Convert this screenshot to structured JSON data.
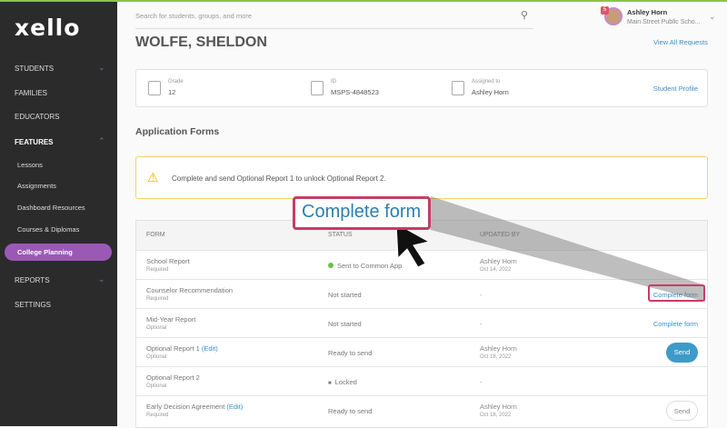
{
  "sidebar": {
    "logo": "xello",
    "items": [
      {
        "label": "STUDENTS"
      },
      {
        "label": "FAMILIES"
      },
      {
        "label": "EDUCATORS"
      },
      {
        "label": "FEATURES"
      },
      {
        "label": "REPORTS"
      },
      {
        "label": "SETTINGS"
      }
    ],
    "features_sub": [
      "Lessons",
      "Assignments",
      "Dashboard Resources",
      "Courses & Diplomas",
      "College Planning"
    ]
  },
  "header": {
    "search_placeholder": "Search for students, groups, and more",
    "user_name": "Ashley Horn",
    "user_school": "Main Street Public Scho...",
    "notification_count": "5"
  },
  "student": {
    "name": "WOLFE, SHELDON",
    "view_all": "View All Requests",
    "grade_label": "Grade",
    "grade": "12",
    "id_label": "ID",
    "id": "MSPS-4848523",
    "assigned_label": "Assigned to",
    "assigned": "Ashley Horn",
    "profile_link": "Student Profile"
  },
  "section_title": "Application Forms",
  "alert": "Complete and send Optional Report 1 to unlock Optional Report 2.",
  "table": {
    "headers": [
      "FORM",
      "STATUS",
      "UPDATED BY"
    ],
    "rows": [
      {
        "name": "School Report",
        "edit": "",
        "req": "Required",
        "status": "Sent to Common App",
        "by": "Ashley Horn",
        "date": "Oct 14, 2022",
        "action": ""
      },
      {
        "name": "Counselor Recommendation",
        "edit": "",
        "req": "Required",
        "status": "Not started",
        "by": "-",
        "date": "",
        "action": "Complete form"
      },
      {
        "name": "Mid-Year Report",
        "edit": "",
        "req": "Optional",
        "status": "Not started",
        "by": "-",
        "date": "",
        "action": "Complete form"
      },
      {
        "name": "Optional Report 1",
        "edit": "(Edit)",
        "req": "Optional",
        "status": "Ready to send",
        "by": "Ashley Horn",
        "date": "Oct 18, 2022",
        "action": "Send"
      },
      {
        "name": "Optional Report 2",
        "edit": "",
        "req": "Optional",
        "status": "Locked",
        "by": "-",
        "date": "",
        "action": ""
      },
      {
        "name": "Early Decision Agreement",
        "edit": "(Edit)",
        "req": "Required",
        "status": "Ready to send",
        "by": "Ashley Horn",
        "date": "Oct 18, 2022",
        "action": "Send"
      }
    ]
  },
  "callout": {
    "label": "Complete form"
  },
  "colors": {
    "accent": "#9b59b6",
    "link": "#3d8fc4",
    "highlight": "#c83c64",
    "send": "#3d9bc9"
  }
}
